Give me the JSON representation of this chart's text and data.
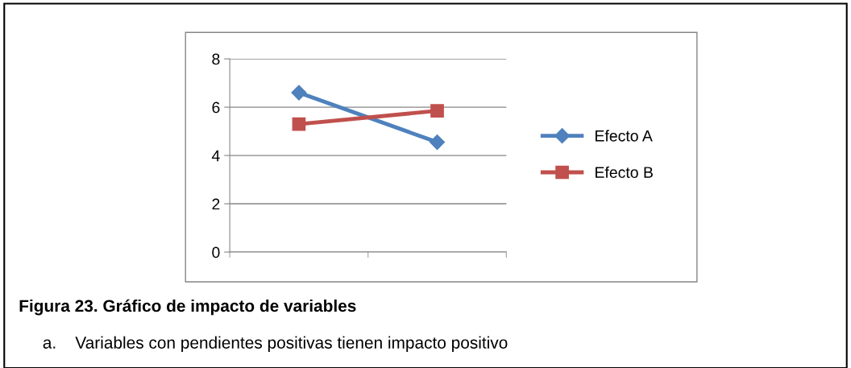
{
  "chart_data": {
    "type": "line",
    "categories": [
      null,
      null
    ],
    "series": [
      {
        "name": "Efecto A",
        "color": "#4f81bd",
        "values": [
          6.6,
          4.55
        ],
        "marker": "diamond"
      },
      {
        "name": "Efecto B",
        "color": "#c0504d",
        "values": [
          5.3,
          5.85
        ],
        "marker": "square"
      }
    ],
    "ylim": [
      0,
      8
    ],
    "yticks": [
      0,
      2,
      4,
      6,
      8
    ],
    "grid": "y",
    "legend": "right",
    "line_style": "solid",
    "annotations": [
      "Figura 23. Gráfico de impacto de variables",
      "a.    Variables con pendientes positivas tienen impacto positivo"
    ]
  }
}
